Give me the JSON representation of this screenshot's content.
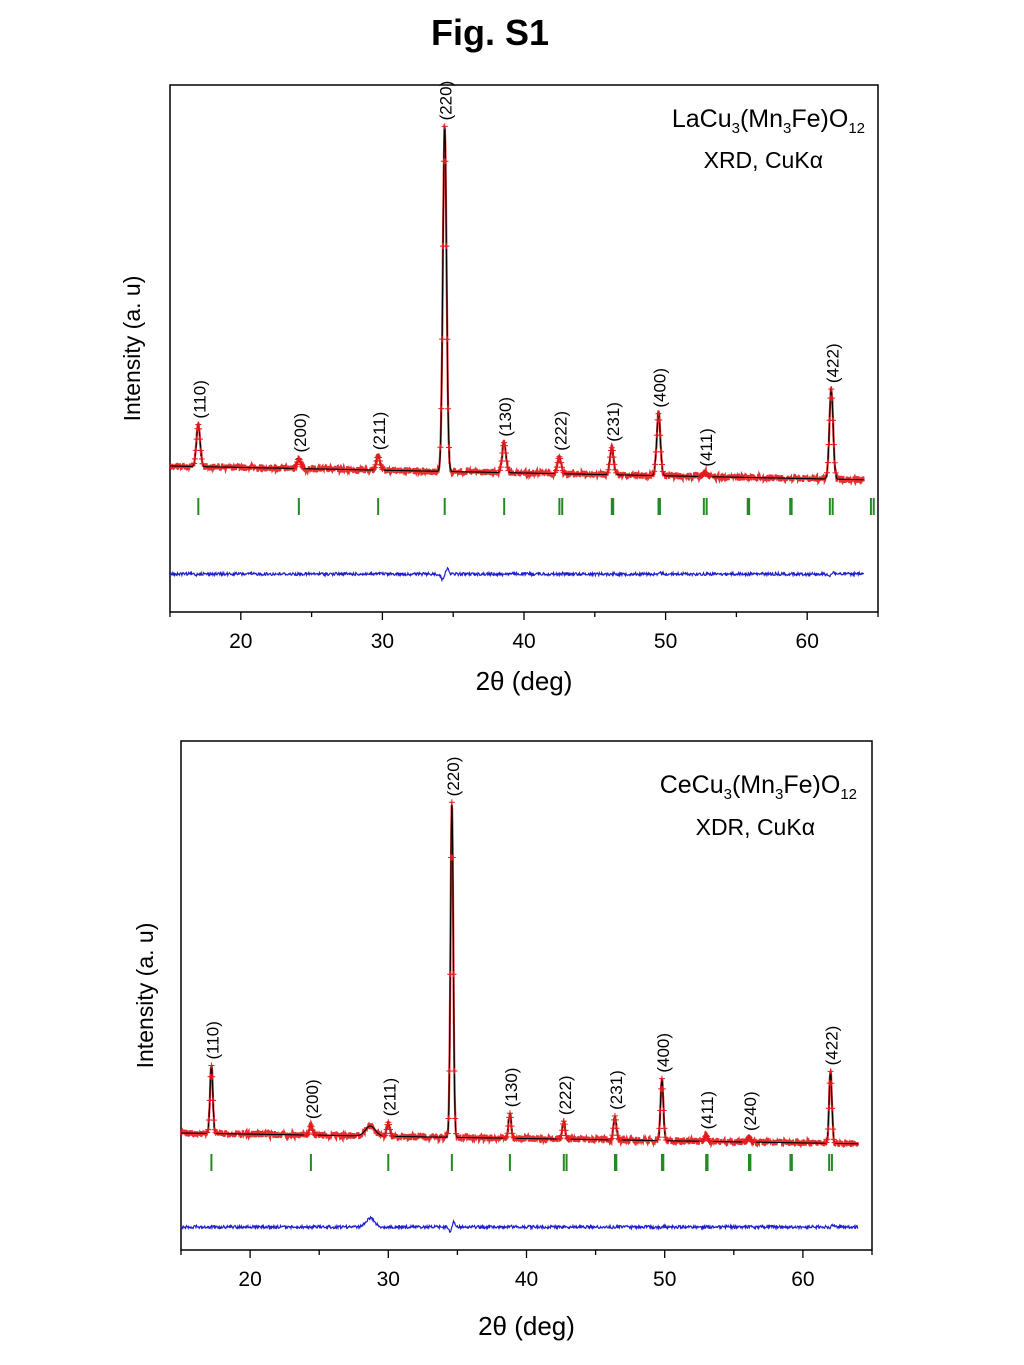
{
  "figure": {
    "title": "Fig. S1"
  },
  "chart_data": [
    {
      "type": "line",
      "xlabel": "2θ (deg)",
      "ylabel": "Intensity (a. u)",
      "xlim": [
        15,
        65
      ],
      "xticks": [
        20,
        30,
        40,
        50,
        60
      ],
      "annotations": [
        "LaCu3(Mn3Fe)O12",
        "XRD, CuKα"
      ],
      "annotation_formula": {
        "a": "LaCu",
        "s1": "3",
        "b": "(Mn",
        "s2": "3",
        "c": "Fe)O",
        "s3": "12"
      },
      "annotation_method": "XRD, CuKα",
      "peaks": [
        {
          "hkl": "(110)",
          "x": 17.0,
          "height": 42
        },
        {
          "hkl": "(200)",
          "x": 24.1,
          "height": 10
        },
        {
          "hkl": "(211)",
          "x": 29.7,
          "height": 14
        },
        {
          "hkl": "(220)",
          "x": 34.4,
          "height": 345
        },
        {
          "hkl": "(130)",
          "x": 38.6,
          "height": 30
        },
        {
          "hkl": "(222)",
          "x": 42.5,
          "height": 17
        },
        {
          "hkl": "(231)",
          "x": 46.2,
          "height": 27
        },
        {
          "hkl": "(400)",
          "x": 49.5,
          "height": 62
        },
        {
          "hkl": "(411)",
          "x": 52.8,
          "height": 4
        },
        {
          "hkl": "(422)",
          "x": 61.7,
          "height": 90
        }
      ],
      "bragg_positions": [
        17.0,
        24.1,
        29.7,
        34.4,
        38.6,
        42.5,
        42.7,
        46.2,
        46.3,
        49.5,
        49.6,
        52.7,
        52.9,
        55.8,
        55.9,
        58.8,
        58.9,
        61.6,
        61.8,
        64.5,
        64.7
      ],
      "series": [
        {
          "name": "observed",
          "color": "#e31a1c"
        },
        {
          "name": "calculated",
          "color": "#000000"
        },
        {
          "name": "difference",
          "color": "#1f1fcf"
        },
        {
          "name": "Bragg positions",
          "color": "#228b22"
        }
      ]
    },
    {
      "type": "line",
      "xlabel": "2θ (deg)",
      "ylabel": "Intensity (a. u)",
      "xlim": [
        15,
        65
      ],
      "xticks": [
        20,
        30,
        40,
        50,
        60
      ],
      "annotations": [
        "CeCu3(Mn3Fe)O12",
        "XDR, CuKα"
      ],
      "annotation_formula": {
        "a": "CeCu",
        "s1": "3",
        "b": "(Mn",
        "s2": "3",
        "c": "Fe)O",
        "s3": "12"
      },
      "annotation_method": "XDR, CuKα",
      "peaks": [
        {
          "hkl": "(110)",
          "x": 17.2,
          "height": 68
        },
        {
          "hkl": "(200)",
          "x": 24.4,
          "height": 10
        },
        {
          "hkl": "(211)",
          "x": 30.0,
          "height": 14
        },
        {
          "hkl": "(220)",
          "x": 34.6,
          "height": 335
        },
        {
          "hkl": "(130)",
          "x": 38.8,
          "height": 25
        },
        {
          "hkl": "(222)",
          "x": 42.7,
          "height": 18
        },
        {
          "hkl": "(231)",
          "x": 46.4,
          "height": 24
        },
        {
          "hkl": "(400)",
          "x": 49.8,
          "height": 62
        },
        {
          "hkl": "(411)",
          "x": 53.0,
          "height": 6
        },
        {
          "hkl": "(240)",
          "x": 56.1,
          "height": 5
        },
        {
          "hkl": "(422)",
          "x": 62.0,
          "height": 72
        }
      ],
      "impurity_bump": {
        "x": 28.7,
        "height": 10
      },
      "bragg_positions": [
        17.2,
        24.4,
        30.0,
        34.6,
        38.8,
        42.7,
        42.9,
        46.4,
        46.5,
        49.8,
        49.9,
        53.0,
        53.1,
        56.1,
        56.2,
        59.1,
        59.2,
        61.9,
        62.1
      ],
      "series": [
        {
          "name": "observed",
          "color": "#e31a1c"
        },
        {
          "name": "calculated",
          "color": "#000000"
        },
        {
          "name": "difference",
          "color": "#1f1fcf"
        },
        {
          "name": "Bragg positions",
          "color": "#228b22"
        }
      ]
    }
  ]
}
